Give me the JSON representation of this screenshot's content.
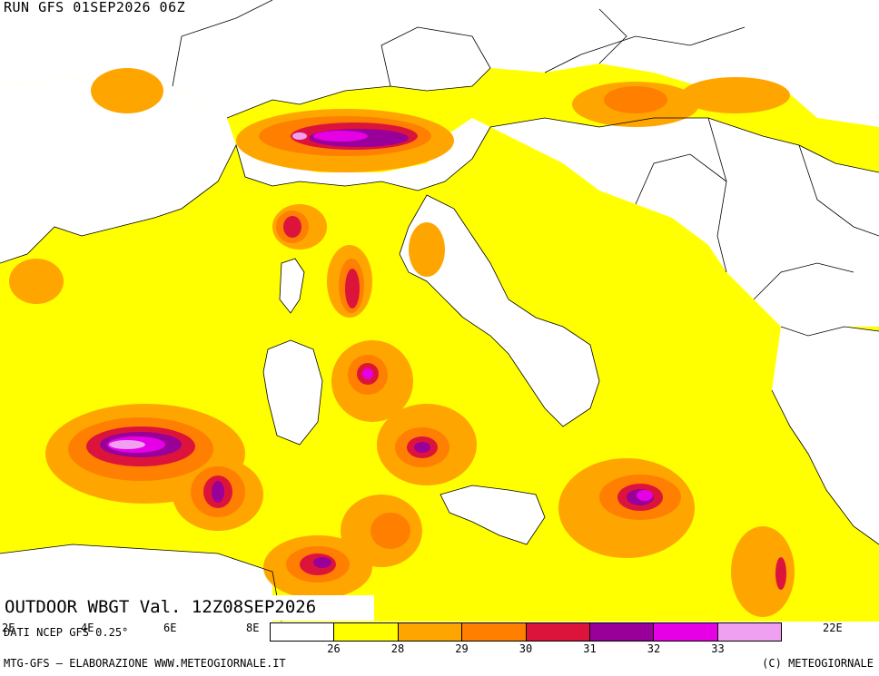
{
  "header": {
    "run_title": "RUN GFS 01SEP2026 06Z"
  },
  "product": {
    "title": "OUTDOOR WBGT Val. 12Z08SEP2026"
  },
  "source": {
    "text": "DATI NCEP GFS 0.25°"
  },
  "longitude_labels": [
    "2E",
    "4E",
    "6E",
    "8E",
    "22E"
  ],
  "legend": {
    "bins": [
      {
        "color": "#ffffff"
      },
      {
        "color": "#ffff00"
      },
      {
        "color": "#ffa500"
      },
      {
        "color": "#ff7f00"
      },
      {
        "color": "#dc143c"
      },
      {
        "color": "#990099"
      },
      {
        "color": "#e600e6"
      },
      {
        "color": "#f0a0f0"
      }
    ],
    "labels": [
      "26",
      "28",
      "29",
      "30",
      "31",
      "32",
      "33"
    ]
  },
  "footer": {
    "left": "MTG-GFS — ELABORAZIONE WWW.METEOGIORNALE.IT",
    "right": "(C) METEOGIORNALE"
  },
  "colors": {
    "land": "#ffffff",
    "sea_wbgt_26_28": "#ffff00",
    "wbgt_28_29": "#ffa500",
    "wbgt_29_30": "#ff7f00",
    "wbgt_30_31": "#dc143c",
    "wbgt_31_32": "#990099",
    "wbgt_32_33": "#e600e6",
    "wbgt_33_plus": "#f0a0f0",
    "borders": "#000000"
  }
}
